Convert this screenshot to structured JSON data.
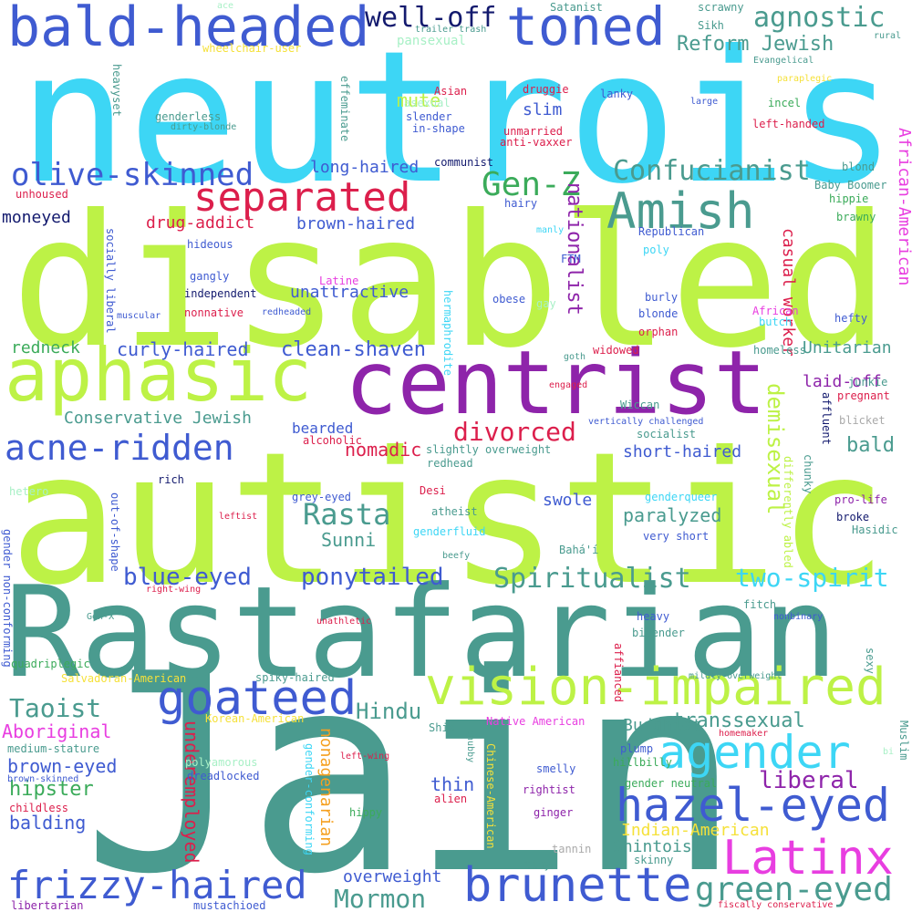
{
  "colors": {
    "background": "#ffffff",
    "cyan": "#3dd6f5",
    "lime": "#bdf246",
    "teal": "#4a9b8f",
    "blue": "#3f5bd1",
    "purple": "#8e24aa",
    "crimson": "#dc1f4c",
    "magenta": "#e83ee0",
    "navy": "#131a6e",
    "green": "#3bab5a",
    "mint": "#a8f0c6",
    "yellow": "#f5e13a"
  },
  "words": {
    "neutrois": "neutrois",
    "disabled": "disabled",
    "autistic": "autistic",
    "jain": "Jain",
    "rastafarian": "Rastafarian",
    "centrist": "centrist",
    "aphasic": "aphasic",
    "vision_impaired": "vision-impaired",
    "bald_headed": "bald-headed",
    "toned": "toned",
    "separated": "separated",
    "amish": "Amish",
    "goateed": "goateed",
    "hazel_eyed": "hazel-eyed",
    "brunette": "brunette",
    "latinx": "Latinx",
    "agender": "agender",
    "frizzy_haired": "frizzy-haired",
    "green_eyed": "green-eyed",
    "olive_skinned": "olive-skinned",
    "acne_ridden": "acne-ridden",
    "gen_z": "Gen-Z",
    "well_off": "well-off",
    "agnostic": "agnostic",
    "confucianist": "Confucianist",
    "spiritualist": "Spiritualist",
    "blue_eyed": "blue-eyed",
    "ponytailed": "ponytailed",
    "two_spirit": "two-spirit",
    "rasta": "Rasta",
    "divorced": "divorced",
    "taoist": "Taoist",
    "mormon": "Mormon",
    "liberal": "liberal",
    "hindu": "Hindu",
    "reform_jewish": "Reform Jewish",
    "nationalist": "nationalist",
    "demisexual": "demisexual",
    "clean_shaven": "clean-shaven",
    "transsexual": "transsexual",
    "casual_worker": "casual worker",
    "african_american": "African-American",
    "long_haired": "long-haired",
    "curly_haired": "curly-haired",
    "brown_haired": "brown-haired",
    "drug_addict": "drug-addict",
    "unattractive": "unattractive",
    "conservative_jewish": "Conservative Jewish",
    "bearded": "bearded",
    "nomadic": "nomadic",
    "sunni": "Sunni",
    "paralyzed": "paralyzed",
    "hipster": "hipster",
    "aboriginal": "Aboriginal",
    "brown_eyed": "brown-eyed",
    "balding": "balding",
    "underemployed": "underemployed",
    "nonagenarian": "nonagenarian",
    "thin": "thin",
    "overweight": "overweight",
    "shintoist": "Shintoist",
    "indian_american": "Indian-American",
    "buddhist": "Buddhist",
    "short_haired": "short-haired",
    "bald": "bald",
    "unitarian": "Unitarian",
    "laid_off": "laid-off",
    "swole": "swole",
    "mute": "mute",
    "slim": "slim",
    "moneyed": "moneyed",
    "redneck": "redneck",
    "pansexual": "pansexual",
    "satanist": "Satanist",
    "scrawny": "scrawny",
    "ace": "ace",
    "rural": "rural",
    "trailer_trash": "trailer trash",
    "sikh": "Sikh",
    "wheelchair_user": "wheelchair-user",
    "evangelical": "Evangelical",
    "heavyset": "heavyset",
    "effeminate": "effeminate",
    "asexual": "asexual",
    "asian": "Asian",
    "druggie": "druggie",
    "lanky": "lanky",
    "paraplegic": "paraplegic",
    "large": "large",
    "genderless": "genderless",
    "slender": "slender",
    "in_shape": "in-shape",
    "unmarried": "unmarried",
    "anti_vaxxer": "anti-vaxxer",
    "left_handed": "left-handed",
    "incel": "incel",
    "dirty_blonde": "dirty-blonde",
    "communist": "communist",
    "blond": "blond",
    "baby_boomer": "Baby Boomer",
    "unhoused": "unhoused",
    "hairy": "hairy",
    "hippie": "hippie",
    "brawny": "brawny",
    "manly": "manly",
    "republican": "Republican",
    "hideous": "hideous",
    "socially_liberal": "socially liberal",
    "poly": "poly",
    "ftm": "FTM",
    "gangly": "gangly",
    "latine": "Latine",
    "independent": "independent",
    "hermaphrodite": "hermaphrodite",
    "burly": "burly",
    "hefty": "hefty",
    "blonde": "blonde",
    "obese": "obese",
    "gay": "gay",
    "muscular": "muscular",
    "redheaded": "redheaded",
    "nonnative": "nonnative",
    "orphan": "orphan",
    "butch": "butch",
    "african": "African",
    "goth": "goth",
    "widowed": "widowed",
    "homeless": "homeless",
    "junkie": "junkie",
    "engaged": "engaged",
    "pregnant": "pregnant",
    "affluent": "affluent",
    "wiccan": "Wiccan",
    "vertically_challenged": "vertically challenged",
    "blicket": "blicket",
    "alcoholic": "alcoholic",
    "socialist": "socialist",
    "differently_abled": "differently abled",
    "chunky": "chunky",
    "slightly_overweight": "slightly overweight",
    "redhead": "redhead",
    "rich": "rich",
    "hetero": "hetero",
    "desi": "Desi",
    "genderqueer": "genderqueer",
    "grey_eyed": "grey-eyed",
    "atheist": "atheist",
    "pro_life": "pro-life",
    "leftist": "leftist",
    "genderfluid": "genderfluid",
    "broke": "broke",
    "very_short": "very short",
    "hasidic": "Hasidic",
    "out_of_shape": "out-of-shape",
    "gender_non_conforming": "gender non-conforming",
    "baha_i": "Bahá'í",
    "beefy": "beefy",
    "right_wing": "right-wing",
    "fitch": "fitch",
    "gen_x": "Gen-X",
    "nonbinary": "nonbinary",
    "unathletic": "unathletic",
    "heavy": "heavy",
    "bigender": "bigender",
    "affianced": "affianced",
    "sexy": "sexy",
    "mildly_overweight": "mildly overweight",
    "quadriplegic": "quadriplegic",
    "salvadoran_american": "Salvadoran-American",
    "spiky_haired": "spiky-haired",
    "korean_american": "Korean-American",
    "shia": "Shia",
    "native_american": "Native American",
    "homemaker": "homemaker",
    "medium_stature": "medium-stature",
    "muslim": "Muslim",
    "polyamorous": "polyamorous",
    "gender_conforming": "gender-conforming",
    "chubby": "chubby",
    "plump": "plump",
    "hillbilly": "hillbilly",
    "left_wing": "left-wing",
    "bi": "bi",
    "brown_skinned": "brown-skinned",
    "dreadlocked": "dreadlocked",
    "smelly": "smelly",
    "gender_neutral": "gender neutral",
    "childless": "childless",
    "hippy": "hippy",
    "alien": "alien",
    "rightist": "rightist",
    "chinese_american": "Chinese-American",
    "ginger": "ginger",
    "tannin": "tannin",
    "tiny": "tiny",
    "skinny": "skinny",
    "mustachioed": "mustachioed",
    "fiscally_conservative": "fiscally conservative",
    "libertarian": "libertarian"
  }
}
